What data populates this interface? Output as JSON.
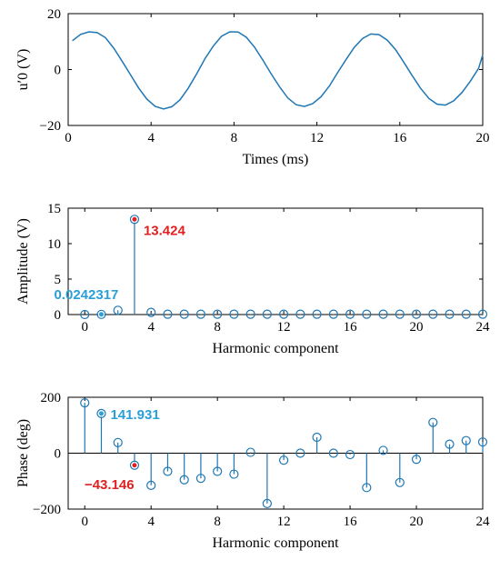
{
  "chart_data": [
    {
      "type": "line",
      "xlabel": "Times (ms)",
      "ylabel": "u′0 (V)",
      "xlim": [
        0,
        20
      ],
      "ylim": [
        -20,
        20
      ],
      "xticks": [
        0,
        4,
        8,
        12,
        16,
        20
      ],
      "yticks": [
        -20,
        0,
        20
      ],
      "xtick_labels": [
        "0",
        "4",
        "8",
        "12",
        "16",
        "20"
      ],
      "ytick_labels": [
        "−20",
        "0",
        "20"
      ],
      "series": [
        {
          "color": "#1f77b4",
          "x": [
            0.2,
            0.6,
            1.0,
            1.4,
            1.8,
            2.2,
            2.6,
            3.0,
            3.4,
            3.8,
            4.2,
            4.6,
            5.0,
            5.4,
            5.8,
            6.2,
            6.6,
            7.0,
            7.4,
            7.8,
            8.2,
            8.6,
            9.0,
            9.4,
            9.8,
            10.2,
            10.6,
            11.0,
            11.4,
            11.8,
            12.2,
            12.6,
            13.0,
            13.4,
            13.8,
            14.2,
            14.6,
            15.0,
            15.4,
            15.8,
            16.2,
            16.6,
            17.0,
            17.4,
            17.8,
            18.2,
            18.6,
            19.0,
            19.4,
            19.8,
            20.0
          ],
          "y": [
            10.3,
            12.6,
            13.5,
            13.2,
            11.4,
            7.6,
            3.0,
            -1.8,
            -6.6,
            -10.6,
            -13.2,
            -14.1,
            -13.3,
            -10.8,
            -6.6,
            -1.5,
            3.9,
            8.4,
            11.9,
            13.5,
            13.4,
            11.5,
            7.9,
            3.3,
            -1.6,
            -6.2,
            -10.2,
            -12.6,
            -13.2,
            -12.2,
            -9.7,
            -5.9,
            -1.1,
            3.5,
            7.9,
            11.1,
            12.7,
            12.5,
            10.5,
            7.1,
            2.5,
            -2.2,
            -6.7,
            -10.3,
            -12.4,
            -12.7,
            -11.2,
            -8.2,
            -4.2,
            0.4,
            5.2
          ]
        }
      ]
    },
    {
      "type": "stem",
      "xlabel": "Harmonic component",
      "ylabel": "Amplitude (V)",
      "xlim": [
        -1,
        24
      ],
      "ylim": [
        0,
        15
      ],
      "xticks": [
        0,
        4,
        8,
        12,
        16,
        20,
        24
      ],
      "yticks": [
        0,
        5,
        10,
        15
      ],
      "xtick_labels": [
        "0",
        "4",
        "8",
        "12",
        "16",
        "20",
        "24"
      ],
      "ytick_labels": [
        "0",
        "5",
        "10",
        "15"
      ],
      "x": [
        0,
        1,
        2,
        3,
        4,
        5,
        6,
        7,
        8,
        9,
        10,
        11,
        12,
        13,
        14,
        15,
        16,
        17,
        18,
        19,
        20,
        21,
        22,
        23,
        24
      ],
      "values": [
        0,
        0.0242317,
        0.6,
        13.424,
        0.3,
        0.05,
        0.05,
        0.05,
        0.05,
        0.05,
        0.05,
        0.05,
        0.05,
        0.05,
        0.05,
        0.05,
        0.05,
        0.05,
        0.05,
        0.05,
        0.05,
        0.05,
        0.05,
        0.05,
        0.05
      ],
      "color": "#1f77b4",
      "highlights": [
        {
          "index": 1,
          "label": "0.0242317",
          "color": "#2a9fd8"
        },
        {
          "index": 3,
          "label": "13.424",
          "color": "#e02020"
        }
      ]
    },
    {
      "type": "stem",
      "xlabel": "Harmonic component",
      "ylabel": "Phase (deg)",
      "xlim": [
        -1,
        24
      ],
      "ylim": [
        -200,
        200
      ],
      "xticks": [
        0,
        4,
        8,
        12,
        16,
        20,
        24
      ],
      "yticks": [
        -200,
        0,
        200
      ],
      "xtick_labels": [
        "0",
        "4",
        "8",
        "12",
        "16",
        "20",
        "24"
      ],
      "ytick_labels": [
        "−200",
        "0",
        "200"
      ],
      "x": [
        0,
        1,
        2,
        3,
        4,
        5,
        6,
        7,
        8,
        9,
        10,
        11,
        12,
        13,
        14,
        15,
        16,
        17,
        18,
        19,
        20,
        21,
        22,
        23,
        24
      ],
      "values": [
        180,
        141.931,
        38,
        -43.146,
        -115,
        -65,
        -95,
        -90,
        -65,
        -75,
        3,
        -180,
        -25,
        0,
        57,
        0,
        -5,
        -123,
        10,
        -105,
        -22,
        110,
        32,
        45,
        40
      ],
      "color": "#1f77b4",
      "highlights": [
        {
          "index": 1,
          "label": "141.931",
          "color": "#2a9fd8"
        },
        {
          "index": 3,
          "label": "−43.146",
          "color": "#e02020"
        }
      ]
    }
  ]
}
